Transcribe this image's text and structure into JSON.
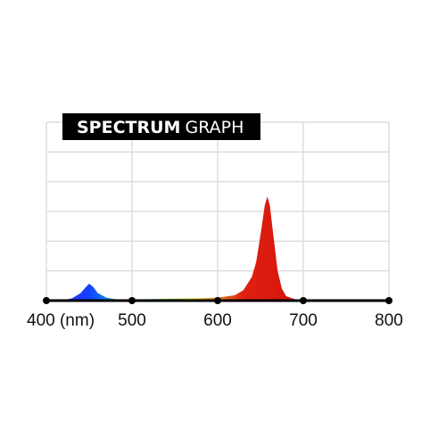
{
  "chart_data": {
    "type": "area",
    "title": "SPECTRUM",
    "subtitle": "GRAPH",
    "x": [
      400,
      420,
      430,
      440,
      445,
      450,
      455,
      460,
      470,
      480,
      500,
      520,
      540,
      560,
      580,
      600,
      620,
      630,
      640,
      645,
      650,
      655,
      658,
      661,
      665,
      670,
      675,
      680,
      690,
      700,
      750,
      800
    ],
    "values": [
      0,
      0.02,
      0.08,
      0.25,
      0.42,
      0.57,
      0.45,
      0.25,
      0.1,
      0.05,
      0.04,
      0.05,
      0.06,
      0.07,
      0.08,
      0.1,
      0.18,
      0.35,
      0.8,
      1.3,
      2.2,
      3.2,
      3.5,
      3.2,
      2.2,
      1.0,
      0.4,
      0.15,
      0.05,
      0.03,
      0.01,
      0
    ],
    "color_stops": [
      [
        400,
        "#3a2aff"
      ],
      [
        450,
        "#1040ff"
      ],
      [
        480,
        "#1aa0e0"
      ],
      [
        520,
        "#30c040"
      ],
      [
        570,
        "#d0d020"
      ],
      [
        600,
        "#e08020"
      ],
      [
        630,
        "#e02010"
      ],
      [
        800,
        "#c00000"
      ]
    ],
    "xlim": [
      400,
      800
    ],
    "xticks": [
      {
        "value": 400,
        "label": "400 (nm)"
      },
      500,
      600,
      700,
      800
    ],
    "ylim": [
      0,
      6
    ],
    "yticks": [
      0,
      1,
      2,
      3,
      4,
      5,
      6
    ],
    "grid": true
  }
}
